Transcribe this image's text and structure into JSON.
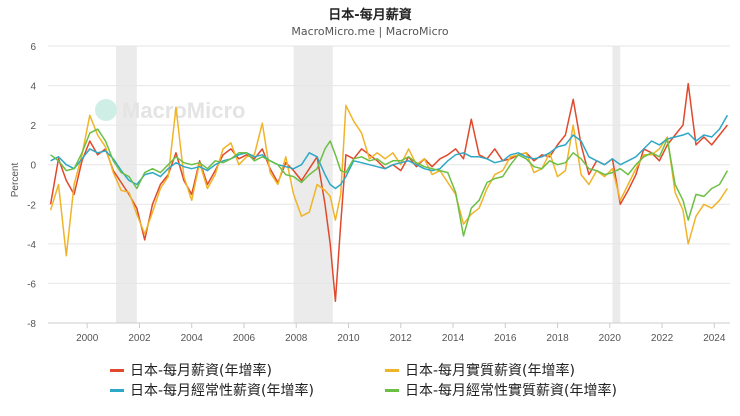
{
  "chart_data": {
    "type": "line",
    "title": "日本-每月薪資",
    "subtitle": "MacroMicro.me | MacroMicro",
    "watermark": "MacroMicro",
    "ylabel": "Percent",
    "xlabel": "",
    "ylim": [
      -8,
      6
    ],
    "yticks": [
      -8,
      -6,
      -4,
      -2,
      0,
      2,
      4,
      6
    ],
    "xlim": [
      1998.5,
      2024.6
    ],
    "xticks": [
      2000,
      2002,
      2004,
      2006,
      2008,
      2010,
      2012,
      2014,
      2016,
      2018,
      2020,
      2022,
      2024
    ],
    "grid": true,
    "legend_position": "bottom",
    "recession_bands": [
      [
        2001.1,
        2001.9
      ],
      [
        2007.9,
        2009.4
      ],
      [
        2020.1,
        2020.4
      ]
    ],
    "series": [
      {
        "name": "日本-每月薪資(年增率)",
        "color": "#e0492c",
        "x": [
          1998.6,
          1998.9,
          1999.2,
          1999.5,
          1999.8,
          2000.1,
          2000.4,
          2000.7,
          2001.0,
          2001.3,
          2001.6,
          2001.9,
          2002.2,
          2002.5,
          2002.8,
          2003.1,
          2003.4,
          2003.7,
          2004.0,
          2004.3,
          2004.6,
          2004.9,
          2005.2,
          2005.5,
          2005.8,
          2006.1,
          2006.4,
          2006.7,
          2007.0,
          2007.3,
          2007.6,
          2007.9,
          2008.2,
          2008.5,
          2008.8,
          2009.1,
          2009.3,
          2009.5,
          2009.7,
          2009.9,
          2010.2,
          2010.5,
          2010.8,
          2011.1,
          2011.4,
          2011.7,
          2012.0,
          2012.3,
          2012.6,
          2012.9,
          2013.2,
          2013.5,
          2013.8,
          2014.1,
          2014.4,
          2014.7,
          2015.0,
          2015.3,
          2015.6,
          2015.9,
          2016.2,
          2016.5,
          2016.8,
          2017.1,
          2017.4,
          2017.7,
          2018.0,
          2018.3,
          2018.6,
          2018.9,
          2019.2,
          2019.5,
          2019.8,
          2020.1,
          2020.4,
          2020.7,
          2021.0,
          2021.3,
          2021.6,
          2021.9,
          2022.2,
          2022.5,
          2022.8,
          2023.0,
          2023.3,
          2023.6,
          2023.9,
          2024.2,
          2024.5
        ],
        "values": [
          -2.0,
          0.3,
          -0.8,
          -1.5,
          0.2,
          1.2,
          0.5,
          0.8,
          -0.3,
          -0.9,
          -1.5,
          -2.2,
          -3.8,
          -2.0,
          -1.0,
          -0.5,
          0.6,
          -0.8,
          -1.5,
          0.2,
          -1.0,
          -0.3,
          0.5,
          0.8,
          0.3,
          0.5,
          0.3,
          0.8,
          -0.2,
          -0.9,
          0.1,
          -0.3,
          -0.8,
          -0.2,
          0.4,
          -2.0,
          -4.0,
          -6.9,
          -3.0,
          0.5,
          0.3,
          0.8,
          0.5,
          0.2,
          -0.2,
          0.0,
          -0.3,
          0.4,
          -0.1,
          0.3,
          -0.1,
          0.3,
          0.5,
          0.8,
          0.3,
          2.3,
          0.5,
          0.3,
          0.8,
          0.2,
          0.3,
          0.5,
          0.6,
          0.2,
          0.5,
          0.4,
          1.0,
          1.5,
          3.3,
          1.0,
          -0.5,
          0.2,
          0.0,
          0.3,
          -2.0,
          -1.3,
          -0.5,
          0.8,
          0.6,
          0.2,
          1.0,
          1.5,
          2.0,
          4.1,
          1.0,
          1.4,
          1.0,
          1.5,
          2.0
        ]
      },
      {
        "name": "日本-每月實質薪資(年增率)",
        "color": "#f0b429",
        "x": [
          1998.6,
          1998.9,
          1999.2,
          1999.5,
          1999.8,
          2000.1,
          2000.4,
          2000.7,
          2001.0,
          2001.3,
          2001.6,
          2001.9,
          2002.2,
          2002.5,
          2002.8,
          2003.1,
          2003.4,
          2003.7,
          2004.0,
          2004.3,
          2004.6,
          2004.9,
          2005.2,
          2005.5,
          2005.8,
          2006.1,
          2006.4,
          2006.7,
          2007.0,
          2007.3,
          2007.6,
          2007.9,
          2008.2,
          2008.5,
          2008.8,
          2009.1,
          2009.3,
          2009.5,
          2009.7,
          2009.9,
          2010.2,
          2010.5,
          2010.8,
          2011.1,
          2011.4,
          2011.7,
          2012.0,
          2012.3,
          2012.6,
          2012.9,
          2013.2,
          2013.5,
          2013.8,
          2014.1,
          2014.4,
          2014.7,
          2015.0,
          2015.3,
          2015.6,
          2015.9,
          2016.2,
          2016.5,
          2016.8,
          2017.1,
          2017.4,
          2017.7,
          2018.0,
          2018.3,
          2018.6,
          2018.9,
          2019.2,
          2019.5,
          2019.8,
          2020.1,
          2020.4,
          2020.7,
          2021.0,
          2021.3,
          2021.6,
          2021.9,
          2022.2,
          2022.5,
          2022.8,
          2023.0,
          2023.3,
          2023.6,
          2023.9,
          2024.2,
          2024.5
        ],
        "values": [
          -2.3,
          -1.0,
          -4.6,
          -1.0,
          0.5,
          2.5,
          1.5,
          0.9,
          -0.4,
          -1.3,
          -1.4,
          -2.5,
          -3.5,
          -2.4,
          -1.2,
          -0.6,
          2.9,
          -0.6,
          -1.8,
          0.1,
          -1.2,
          -0.5,
          0.8,
          1.1,
          0.0,
          0.4,
          0.5,
          2.1,
          -0.4,
          -1.0,
          0.4,
          -1.5,
          -2.6,
          -2.4,
          -1.0,
          -1.3,
          -1.6,
          -2.8,
          -1.5,
          3.0,
          2.2,
          1.6,
          0.3,
          0.6,
          0.3,
          0.6,
          0.0,
          0.8,
          0.0,
          0.3,
          -0.5,
          -0.3,
          -0.9,
          -1.5,
          -3.0,
          -2.5,
          -2.2,
          -1.2,
          -0.5,
          -0.3,
          0.4,
          0.5,
          0.6,
          -0.4,
          -0.2,
          0.6,
          -0.6,
          -0.3,
          2.0,
          -0.5,
          -1.0,
          -0.3,
          -0.6,
          -0.2,
          -1.8,
          -1.0,
          -0.2,
          0.5,
          0.5,
          0.8,
          1.4,
          -1.4,
          -2.3,
          -4.0,
          -2.6,
          -2.0,
          -2.2,
          -1.8,
          -1.2
        ]
      },
      {
        "name": "日本-每月經常性薪資(年增率)",
        "color": "#2ea8c7",
        "x": [
          1998.6,
          1998.9,
          1999.2,
          1999.5,
          1999.8,
          2000.1,
          2000.4,
          2000.7,
          2001.0,
          2001.3,
          2001.6,
          2001.9,
          2002.2,
          2002.5,
          2002.8,
          2003.1,
          2003.4,
          2003.7,
          2004.0,
          2004.3,
          2004.6,
          2004.9,
          2005.2,
          2005.5,
          2005.8,
          2006.1,
          2006.4,
          2006.7,
          2007.0,
          2007.3,
          2007.6,
          2007.9,
          2008.2,
          2008.5,
          2008.8,
          2009.1,
          2009.3,
          2009.5,
          2009.7,
          2009.9,
          2010.2,
          2010.5,
          2010.8,
          2011.1,
          2011.4,
          2011.7,
          2012.0,
          2012.3,
          2012.6,
          2012.9,
          2013.2,
          2013.5,
          2013.8,
          2014.1,
          2014.4,
          2014.7,
          2015.0,
          2015.3,
          2015.6,
          2015.9,
          2016.2,
          2016.5,
          2016.8,
          2017.1,
          2017.4,
          2017.7,
          2018.0,
          2018.3,
          2018.6,
          2018.9,
          2019.2,
          2019.5,
          2019.8,
          2020.1,
          2020.4,
          2020.7,
          2021.0,
          2021.3,
          2021.6,
          2021.9,
          2022.2,
          2022.5,
          2022.8,
          2023.0,
          2023.3,
          2023.6,
          2023.9,
          2024.2,
          2024.5
        ],
        "values": [
          0.2,
          0.4,
          0.0,
          -0.2,
          0.3,
          0.8,
          0.6,
          0.7,
          0.3,
          -0.3,
          -0.8,
          -1.0,
          -0.5,
          -0.4,
          -0.6,
          -0.2,
          0.1,
          -0.1,
          -0.2,
          -0.1,
          -0.3,
          0.0,
          0.2,
          0.3,
          0.5,
          0.6,
          0.4,
          0.5,
          0.2,
          0.0,
          -0.1,
          -0.2,
          0.0,
          0.6,
          0.4,
          -0.5,
          -1.0,
          -1.2,
          -1.0,
          -0.6,
          0.2,
          0.1,
          0.0,
          -0.1,
          -0.2,
          0.0,
          0.1,
          0.2,
          0.0,
          -0.2,
          -0.3,
          -0.2,
          0.2,
          0.5,
          0.6,
          0.4,
          0.4,
          0.3,
          0.1,
          0.2,
          0.5,
          0.6,
          0.4,
          0.3,
          0.4,
          0.6,
          0.9,
          1.0,
          1.5,
          1.2,
          0.4,
          0.2,
          0.0,
          0.3,
          0.0,
          0.2,
          0.4,
          0.8,
          1.2,
          1.0,
          1.3,
          1.4,
          1.5,
          1.6,
          1.2,
          1.5,
          1.4,
          1.8,
          2.5
        ]
      },
      {
        "name": "日本-每月經常性實質薪資(年增率)",
        "color": "#6cbf45",
        "x": [
          1998.6,
          1998.9,
          1999.2,
          1999.5,
          1999.8,
          2000.1,
          2000.4,
          2000.7,
          2001.0,
          2001.3,
          2001.6,
          2001.9,
          2002.2,
          2002.5,
          2002.8,
          2003.1,
          2003.4,
          2003.7,
          2004.0,
          2004.3,
          2004.6,
          2004.9,
          2005.2,
          2005.5,
          2005.8,
          2006.1,
          2006.4,
          2006.7,
          2007.0,
          2007.3,
          2007.6,
          2007.9,
          2008.2,
          2008.5,
          2008.8,
          2009.1,
          2009.3,
          2009.5,
          2009.7,
          2009.9,
          2010.2,
          2010.5,
          2010.8,
          2011.1,
          2011.4,
          2011.7,
          2012.0,
          2012.3,
          2012.6,
          2012.9,
          2013.2,
          2013.5,
          2013.8,
          2014.1,
          2014.4,
          2014.7,
          2015.0,
          2015.3,
          2015.6,
          2015.9,
          2016.2,
          2016.5,
          2016.8,
          2017.1,
          2017.4,
          2017.7,
          2018.0,
          2018.3,
          2018.6,
          2018.9,
          2019.2,
          2019.5,
          2019.8,
          2020.1,
          2020.4,
          2020.7,
          2021.0,
          2021.3,
          2021.6,
          2021.9,
          2022.2,
          2022.5,
          2022.8,
          2023.0,
          2023.3,
          2023.6,
          2023.9,
          2024.2,
          2024.5
        ],
        "values": [
          0.5,
          0.2,
          -0.3,
          -0.2,
          0.6,
          1.6,
          1.8,
          1.2,
          0.2,
          -0.4,
          -0.6,
          -1.2,
          -0.4,
          -0.2,
          -0.4,
          0.0,
          0.4,
          0.1,
          0.0,
          0.1,
          -0.2,
          0.2,
          0.1,
          0.3,
          0.6,
          0.6,
          0.2,
          0.4,
          0.2,
          0.0,
          -0.5,
          -0.6,
          -0.9,
          -0.5,
          -0.2,
          0.8,
          1.2,
          0.5,
          -0.3,
          -0.4,
          0.3,
          0.4,
          0.2,
          0.3,
          0.0,
          0.2,
          0.2,
          0.4,
          0.1,
          -0.1,
          -0.2,
          -0.3,
          -0.4,
          -1.4,
          -3.6,
          -2.2,
          -1.8,
          -0.9,
          -0.7,
          -0.6,
          0.0,
          0.5,
          0.3,
          -0.1,
          -0.2,
          0.2,
          0.0,
          0.1,
          0.6,
          0.3,
          -0.2,
          -0.3,
          -0.5,
          -0.4,
          -0.2,
          -0.5,
          0.0,
          0.4,
          0.6,
          0.4,
          1.3,
          -1.0,
          -1.8,
          -2.8,
          -1.5,
          -1.6,
          -1.2,
          -1.0,
          -0.3
        ]
      }
    ]
  }
}
